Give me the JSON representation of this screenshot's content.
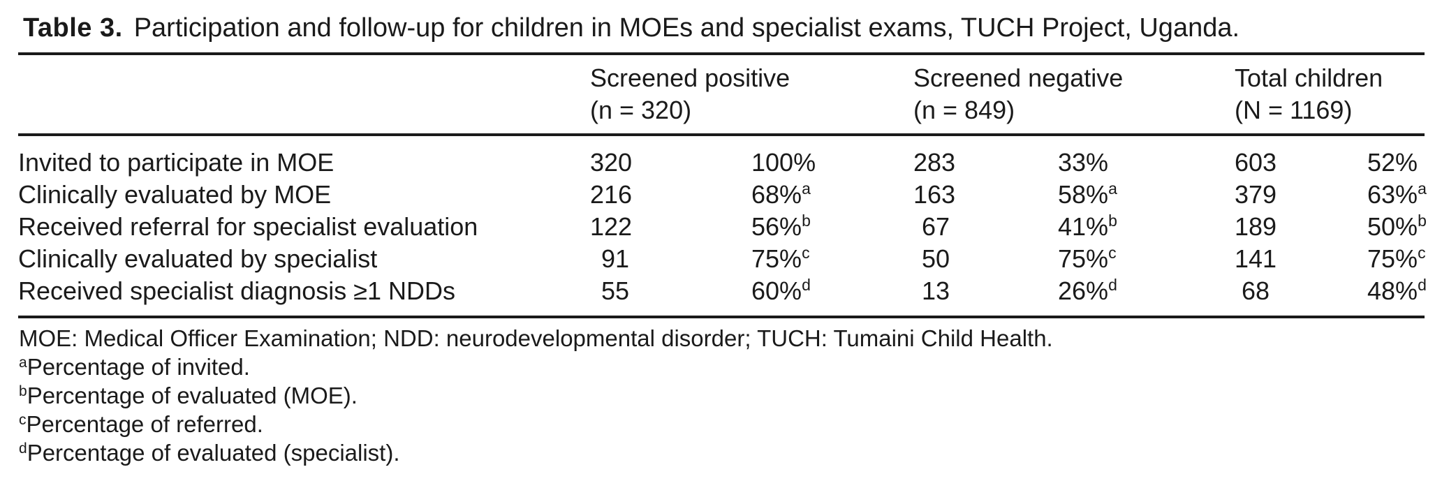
{
  "title": {
    "label": "Table 3.",
    "text": "Participation and follow-up for children in MOEs and specialist exams, TUCH Project, Uganda."
  },
  "table": {
    "column_groups": [
      {
        "name": "Screened positive",
        "sub": "(n = 320)"
      },
      {
        "name": "Screened negative",
        "sub": "(n = 849)"
      },
      {
        "name": "Total children",
        "sub": "(N = 1169)"
      }
    ],
    "rows": [
      {
        "label": "Invited to participate in MOE",
        "cells": [
          {
            "n": "320",
            "pct": "100%",
            "sup": ""
          },
          {
            "n": "283",
            "pct": "33%",
            "sup": ""
          },
          {
            "n": "603",
            "pct": "52%",
            "sup": ""
          }
        ]
      },
      {
        "label": "Clinically evaluated by MOE",
        "cells": [
          {
            "n": "216",
            "pct": "68%",
            "sup": "a"
          },
          {
            "n": "163",
            "pct": "58%",
            "sup": "a"
          },
          {
            "n": "379",
            "pct": "63%",
            "sup": "a"
          }
        ]
      },
      {
        "label": "Received referral for specialist evaluation",
        "cells": [
          {
            "n": "122",
            "pct": "56%",
            "sup": "b"
          },
          {
            "n": "67",
            "pct": "41%",
            "sup": "b"
          },
          {
            "n": "189",
            "pct": "50%",
            "sup": "b"
          }
        ]
      },
      {
        "label": "Clinically evaluated by specialist",
        "cells": [
          {
            "n": "91",
            "pct": "75%",
            "sup": "c"
          },
          {
            "n": "50",
            "pct": "75%",
            "sup": "c"
          },
          {
            "n": "141",
            "pct": "75%",
            "sup": "c"
          }
        ]
      },
      {
        "label": "Received specialist diagnosis ≥1 NDDs",
        "cells": [
          {
            "n": "55",
            "pct": "60%",
            "sup": "d"
          },
          {
            "n": "13",
            "pct": "26%",
            "sup": "d"
          },
          {
            "n": "68",
            "pct": "48%",
            "sup": "d"
          }
        ]
      }
    ]
  },
  "footnotes": {
    "abbrev": "MOE: Medical Officer Examination; NDD: neurodevelopmental disorder; TUCH: Tumaini Child Health.",
    "notes": [
      {
        "sup": "a",
        "text": "Percentage of invited."
      },
      {
        "sup": "b",
        "text": "Percentage of evaluated (MOE)."
      },
      {
        "sup": "c",
        "text": "Percentage of referred."
      },
      {
        "sup": "d",
        "text": "Percentage of evaluated (specialist)."
      }
    ]
  },
  "colors": {
    "text": "#1a1a1a",
    "background": "#ffffff",
    "rule": "#1a1a1a"
  }
}
